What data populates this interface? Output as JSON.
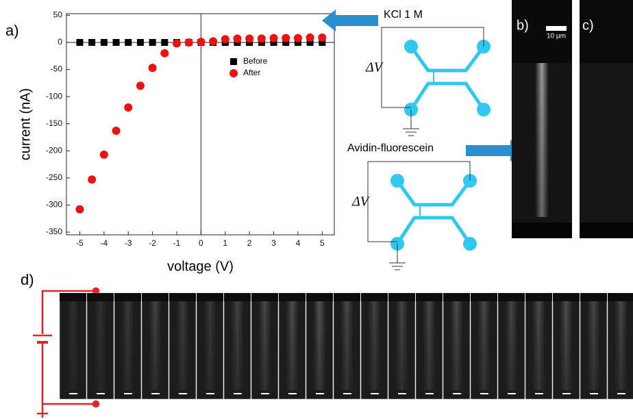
{
  "chart_data": {
    "type": "scatter",
    "panel_label": "a)",
    "x_label": "voltage (V)",
    "y_label": "current (nA)",
    "x": [
      -5,
      -4.5,
      -4,
      -3.5,
      -3,
      -2.5,
      -2,
      -1.5,
      -1,
      -0.5,
      0,
      0.5,
      1,
      1.5,
      2,
      2.5,
      3,
      3.5,
      4,
      4.5,
      5
    ],
    "series": [
      {
        "name": "Before",
        "color": "#000000",
        "marker": "square",
        "values": [
          0,
          0,
          0,
          0,
          0,
          0,
          0,
          0,
          0,
          0,
          0,
          0,
          0,
          0,
          0,
          0,
          0,
          0,
          0,
          0,
          0
        ]
      },
      {
        "name": "After",
        "color": "#ee1111",
        "marker": "circle",
        "values": [
          -308,
          -253,
          -207,
          -163,
          -120,
          -80,
          -47,
          -20,
          -2,
          0,
          1,
          2,
          6,
          7,
          7,
          7,
          8,
          8,
          8,
          9,
          9
        ]
      }
    ],
    "xlim": [
      -5.55,
      5.5
    ],
    "ylim": [
      -355,
      53
    ],
    "xticks": [
      -5,
      -4,
      -3,
      -2,
      -1,
      0,
      1,
      2,
      3,
      4,
      5
    ],
    "yticks": [
      50,
      0,
      -50,
      -100,
      -150,
      -200,
      -250,
      -300,
      -350
    ],
    "zero_lines": true,
    "legend": "upper center"
  },
  "figure": {
    "kcl": "KCl 1 M",
    "delta_v_top": "ΔV",
    "avidin": "Avidin-fluorescein",
    "delta_v_bottom": "ΔV",
    "label_b": "b)",
    "label_c": "c)",
    "scale_bar": "10 μm",
    "label_d": "d)"
  }
}
